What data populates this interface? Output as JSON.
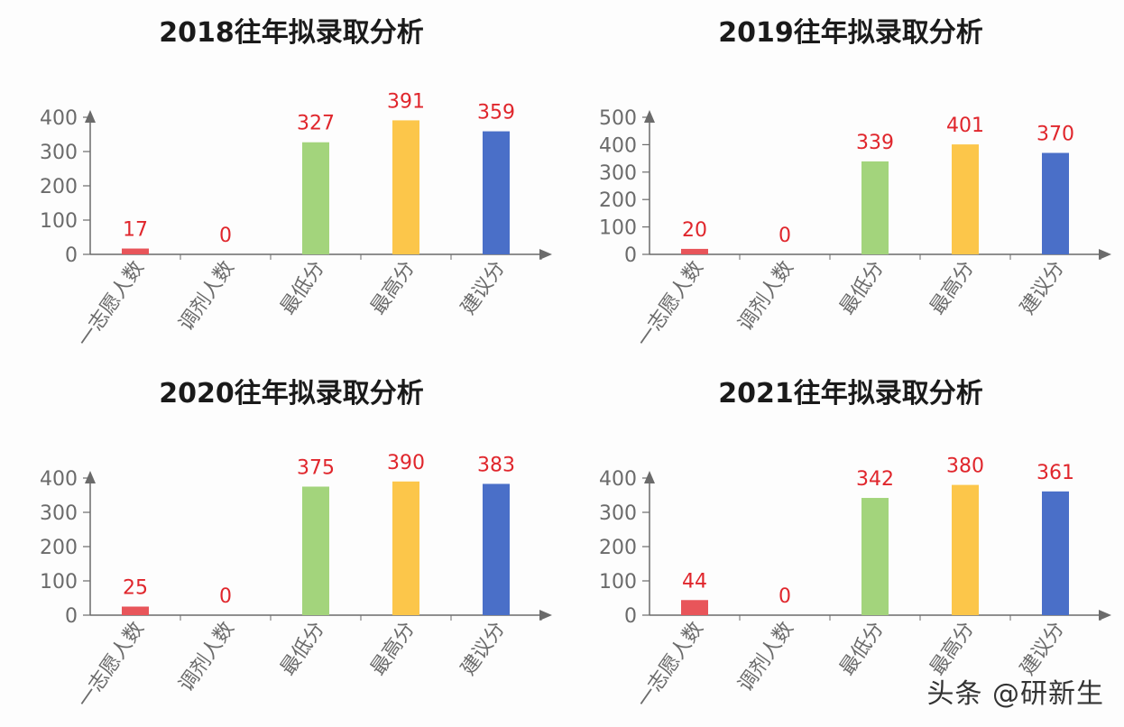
{
  "chart_data": [
    {
      "type": "bar",
      "title": "2018往年拟录取分析",
      "categories": [
        "一志愿人数",
        "调剂人数",
        "最低分",
        "最高分",
        "建议分"
      ],
      "values": [
        17,
        0,
        327,
        391,
        359
      ],
      "colors": [
        "#e8555a",
        "#e8555a",
        "#a3d47c",
        "#fcc64a",
        "#4a6fc8"
      ],
      "yticks": [
        0,
        100,
        200,
        300,
        400
      ],
      "ylim": [
        0,
        400
      ],
      "grid": false
    },
    {
      "type": "bar",
      "title": "2019往年拟录取分析",
      "categories": [
        "一志愿人数",
        "调剂人数",
        "最低分",
        "最高分",
        "建议分"
      ],
      "values": [
        20,
        0,
        339,
        401,
        370
      ],
      "colors": [
        "#e8555a",
        "#e8555a",
        "#a3d47c",
        "#fcc64a",
        "#4a6fc8"
      ],
      "yticks": [
        0,
        100,
        200,
        300,
        400,
        500
      ],
      "ylim": [
        0,
        500
      ],
      "grid": false
    },
    {
      "type": "bar",
      "title": "2020往年拟录取分析",
      "categories": [
        "一志愿人数",
        "调剂人数",
        "最低分",
        "最高分",
        "建议分"
      ],
      "values": [
        25,
        0,
        375,
        390,
        383
      ],
      "colors": [
        "#e8555a",
        "#e8555a",
        "#a3d47c",
        "#fcc64a",
        "#4a6fc8"
      ],
      "yticks": [
        0,
        100,
        200,
        300,
        400
      ],
      "ylim": [
        0,
        400
      ],
      "grid": false
    },
    {
      "type": "bar",
      "title": "2021往年拟录取分析",
      "categories": [
        "一志愿人数",
        "调剂人数",
        "最低分",
        "最高分",
        "建议分"
      ],
      "values": [
        44,
        0,
        342,
        380,
        361
      ],
      "colors": [
        "#e8555a",
        "#e8555a",
        "#a3d47c",
        "#fcc64a",
        "#4a6fc8"
      ],
      "yticks": [
        0,
        100,
        200,
        300,
        400
      ],
      "ylim": [
        0,
        400
      ],
      "grid": false
    }
  ],
  "watermark": "头条 @研新生",
  "label_color": "#e0262c",
  "axis_color": "#6b6b6b"
}
